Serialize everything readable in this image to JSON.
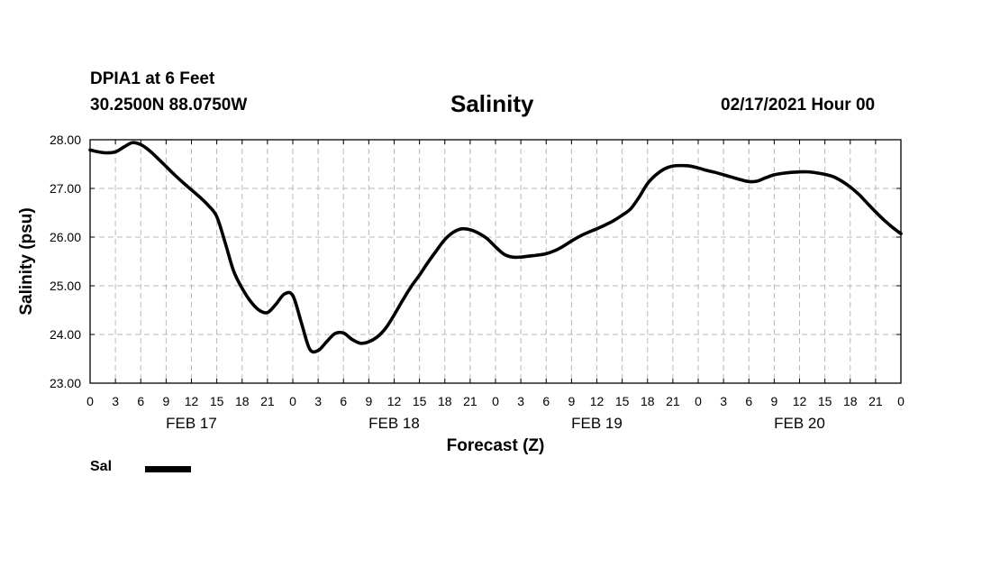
{
  "header": {
    "station": "DPIA1 at 6 Feet",
    "coords": "30.2500N 88.0750W",
    "datetime": "02/17/2021 Hour 00"
  },
  "chart_data": {
    "type": "line",
    "title": "Salinity",
    "xlabel": "Forecast (Z)",
    "ylabel": "Salinity (psu)",
    "ylim": [
      23,
      28
    ],
    "xlim": [
      0,
      96
    ],
    "yticks": [
      "23.00",
      "24.00",
      "25.00",
      "26.00",
      "27.00",
      "28.00"
    ],
    "xtick_labels": [
      "0",
      "3",
      "6",
      "9",
      "12",
      "15",
      "18",
      "21",
      "0",
      "3",
      "6",
      "9",
      "12",
      "15",
      "18",
      "21",
      "0",
      "3",
      "6",
      "9",
      "12",
      "15",
      "18",
      "21",
      "0",
      "3",
      "6",
      "9",
      "12",
      "15",
      "18",
      "21",
      "0"
    ],
    "date_labels": [
      {
        "label": "FEB 17",
        "hour": 12
      },
      {
        "label": "FEB 18",
        "hour": 36
      },
      {
        "label": "FEB 19",
        "hour": 60
      },
      {
        "label": "FEB 20",
        "hour": 84
      }
    ],
    "grid": true,
    "legend_position": "bottom-left",
    "series": [
      {
        "name": "Sal",
        "color": "#000000",
        "x": [
          0,
          1,
          2,
          3,
          4,
          5,
          6,
          7,
          8,
          9,
          10,
          11,
          12,
          13,
          14,
          15,
          16,
          17,
          18,
          19,
          20,
          21,
          22,
          23,
          24,
          25,
          26,
          27,
          28,
          29,
          30,
          31,
          32,
          33,
          34,
          35,
          36,
          37,
          38,
          39,
          40,
          41,
          42,
          43,
          44,
          45,
          46,
          47,
          48,
          49,
          50,
          51,
          52,
          53,
          54,
          55,
          56,
          57,
          58,
          59,
          60,
          61,
          62,
          63,
          64,
          65,
          66,
          67,
          68,
          69,
          70,
          71,
          72,
          73,
          74,
          75,
          76,
          77,
          78,
          79,
          80,
          81,
          82,
          83,
          84,
          85,
          86,
          87,
          88,
          89,
          90,
          91,
          92,
          93,
          94,
          95,
          96
        ],
        "values": [
          27.79,
          27.75,
          27.73,
          27.75,
          27.85,
          27.94,
          27.9,
          27.78,
          27.62,
          27.45,
          27.28,
          27.12,
          26.97,
          26.82,
          26.65,
          26.42,
          25.88,
          25.3,
          24.95,
          24.68,
          24.5,
          24.45,
          24.62,
          24.83,
          24.8,
          24.25,
          23.7,
          23.67,
          23.85,
          24.02,
          24.03,
          23.9,
          23.82,
          23.85,
          23.95,
          24.13,
          24.4,
          24.7,
          24.98,
          25.22,
          25.48,
          25.72,
          25.95,
          26.1,
          26.17,
          26.15,
          26.08,
          25.97,
          25.8,
          25.65,
          25.59,
          25.59,
          25.61,
          25.63,
          25.66,
          25.72,
          25.81,
          25.92,
          26.02,
          26.1,
          26.17,
          26.25,
          26.34,
          26.45,
          26.58,
          26.82,
          27.1,
          27.28,
          27.4,
          27.46,
          27.47,
          27.46,
          27.42,
          27.37,
          27.33,
          27.28,
          27.23,
          27.18,
          27.14,
          27.15,
          27.22,
          27.28,
          27.31,
          27.33,
          27.34,
          27.34,
          27.32,
          27.29,
          27.24,
          27.15,
          27.03,
          26.88,
          26.7,
          26.52,
          26.35,
          26.2,
          26.07
        ]
      }
    ]
  }
}
